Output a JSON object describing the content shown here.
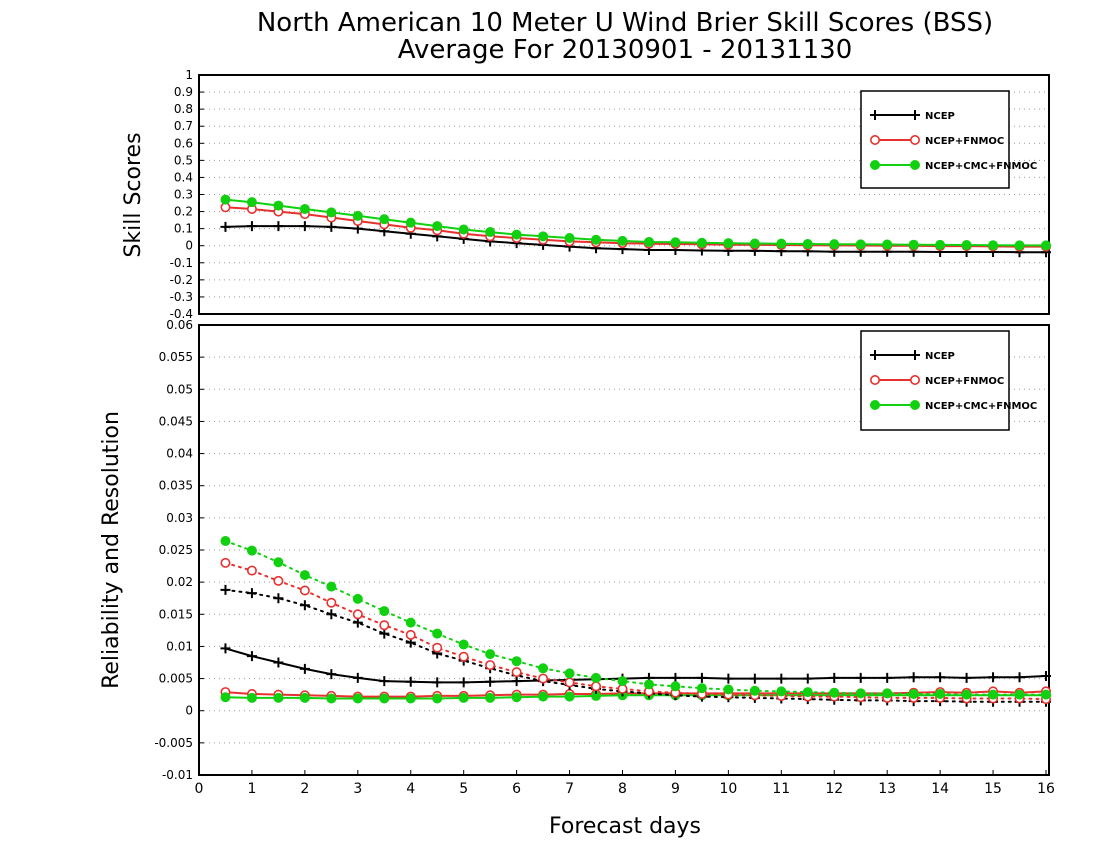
{
  "title_line1": "North American 10 Meter U Wind Brier Skill Scores (BSS)",
  "title_line2": "Average For 20130901 - 20131130",
  "colors": {
    "NCEP": "#000000",
    "NCEP+FNMOC": "#e8312f",
    "NCEP+CMC+FNMOC": "#10d010"
  },
  "chart_data": [
    {
      "type": "line",
      "ylabel": "Skill Scores",
      "ylim": [
        -0.4,
        1
      ],
      "yticks": [
        "1",
        "0.9",
        "0.8",
        "0.7",
        "0.6",
        "0.5",
        "0.4",
        "0.3",
        "0.2",
        "0.1",
        "0",
        "-0.1",
        "-0.2",
        "-0.3",
        "-0.4"
      ],
      "x": [
        0.5,
        1,
        1.5,
        2,
        2.5,
        3,
        3.5,
        4,
        4.5,
        5,
        5.5,
        6,
        6.5,
        7,
        7.5,
        8,
        8.5,
        9,
        9.5,
        10,
        10.5,
        11,
        11.5,
        12,
        12.5,
        13,
        13.5,
        14,
        14.5,
        15,
        15.5,
        16
      ],
      "series": [
        {
          "name": "NCEP",
          "marker": "plus",
          "style": "solid",
          "values": [
            0.11,
            0.115,
            0.115,
            0.115,
            0.11,
            0.1,
            0.085,
            0.07,
            0.055,
            0.04,
            0.025,
            0.015,
            0.005,
            -0.005,
            -0.015,
            -0.02,
            -0.025,
            -0.025,
            -0.028,
            -0.03,
            -0.03,
            -0.032,
            -0.033,
            -0.035,
            -0.035,
            -0.035,
            -0.035,
            -0.037,
            -0.037,
            -0.037,
            -0.038,
            -0.038
          ]
        },
        {
          "name": "NCEP+FNMOC",
          "marker": "open-circle",
          "style": "solid",
          "values": [
            0.225,
            0.215,
            0.2,
            0.185,
            0.165,
            0.145,
            0.125,
            0.105,
            0.09,
            0.07,
            0.055,
            0.045,
            0.035,
            0.025,
            0.02,
            0.015,
            0.012,
            0.01,
            0.008,
            0.006,
            0.005,
            0.004,
            0.003,
            0.002,
            0.001,
            0.0,
            0.0,
            -0.002,
            -0.002,
            -0.004,
            -0.005,
            -0.005
          ]
        },
        {
          "name": "NCEP+CMC+FNMOC",
          "marker": "filled-circle",
          "style": "solid",
          "values": [
            0.27,
            0.255,
            0.235,
            0.215,
            0.195,
            0.175,
            0.155,
            0.135,
            0.115,
            0.095,
            0.08,
            0.065,
            0.055,
            0.045,
            0.035,
            0.028,
            0.022,
            0.02,
            0.017,
            0.015,
            0.013,
            0.012,
            0.01,
            0.009,
            0.008,
            0.007,
            0.006,
            0.005,
            0.004,
            0.003,
            0.002,
            0.002
          ]
        }
      ],
      "legend": [
        "NCEP",
        "NCEP+FNMOC",
        "NCEP+CMC+FNMOC"
      ],
      "legend_placement": "top-right",
      "grid": true
    },
    {
      "type": "line",
      "ylabel": "Reliability and Resolution",
      "xlabel": "Forecast days",
      "ylim": [
        -0.01,
        0.06
      ],
      "yticks": [
        "0.06",
        "0.055",
        "0.05",
        "0.045",
        "0.04",
        "0.035",
        "0.03",
        "0.025",
        "0.02",
        "0.015",
        "0.01",
        "0.005",
        "0",
        "-0.005",
        "-0.01"
      ],
      "xlim": [
        0,
        16
      ],
      "xticks": [
        "0",
        "1",
        "2",
        "3",
        "4",
        "5",
        "6",
        "7",
        "8",
        "9",
        "10",
        "11",
        "12",
        "13",
        "14",
        "15",
        "16"
      ],
      "x": [
        0.5,
        1,
        1.5,
        2,
        2.5,
        3,
        3.5,
        4,
        4.5,
        5,
        5.5,
        6,
        6.5,
        7,
        7.5,
        8,
        8.5,
        9,
        9.5,
        10,
        10.5,
        11,
        11.5,
        12,
        12.5,
        13,
        13.5,
        14,
        14.5,
        15,
        15.5,
        16
      ],
      "series": [
        {
          "name": "NCEP",
          "marker": "plus",
          "style": "solid",
          "values": [
            0.0097,
            0.0085,
            0.0075,
            0.0065,
            0.0057,
            0.0051,
            0.0046,
            0.0045,
            0.0044,
            0.0044,
            0.0045,
            0.0046,
            0.0047,
            0.0048,
            0.0049,
            0.005,
            0.0051,
            0.0051,
            0.0051,
            0.005,
            0.005,
            0.005,
            0.005,
            0.0051,
            0.0051,
            0.0051,
            0.0052,
            0.0052,
            0.0051,
            0.0052,
            0.0052,
            0.0054
          ]
        },
        {
          "name": "NCEP+FNMOC",
          "marker": "open-circle",
          "style": "solid",
          "values": [
            0.0029,
            0.0026,
            0.0025,
            0.0024,
            0.0023,
            0.0022,
            0.0022,
            0.0022,
            0.0023,
            0.0023,
            0.0024,
            0.0025,
            0.0025,
            0.0026,
            0.0026,
            0.0027,
            0.0027,
            0.0027,
            0.0027,
            0.0027,
            0.0027,
            0.0027,
            0.0027,
            0.0027,
            0.0027,
            0.0027,
            0.0028,
            0.0029,
            0.0028,
            0.003,
            0.0028,
            0.003
          ]
        },
        {
          "name": "NCEP+CMC+FNMOC",
          "marker": "filled-circle",
          "style": "solid",
          "values": [
            0.0021,
            0.002,
            0.002,
            0.002,
            0.0019,
            0.0019,
            0.0019,
            0.0019,
            0.0019,
            0.002,
            0.002,
            0.0021,
            0.0022,
            0.0022,
            0.0023,
            0.0024,
            0.0024,
            0.0024,
            0.0024,
            0.0024,
            0.0024,
            0.0024,
            0.0024,
            0.0024,
            0.0024,
            0.0024,
            0.0024,
            0.0024,
            0.0024,
            0.0024,
            0.0024,
            0.0024
          ]
        },
        {
          "name": "NCEP",
          "marker": "plus",
          "style": "dotted",
          "values": [
            0.0188,
            0.0183,
            0.0175,
            0.0164,
            0.015,
            0.0137,
            0.012,
            0.0106,
            0.0089,
            0.0078,
            0.0066,
            0.0055,
            0.0046,
            0.004,
            0.0034,
            0.003,
            0.0027,
            0.0024,
            0.0022,
            0.0021,
            0.002,
            0.0019,
            0.0018,
            0.0017,
            0.0016,
            0.0016,
            0.0015,
            0.0015,
            0.0014,
            0.0014,
            0.0014,
            0.0014
          ]
        },
        {
          "name": "NCEP+FNMOC",
          "marker": "open-circle",
          "style": "dotted",
          "values": [
            0.023,
            0.0218,
            0.0202,
            0.0187,
            0.0168,
            0.015,
            0.0133,
            0.0118,
            0.0098,
            0.0084,
            0.0071,
            0.006,
            0.005,
            0.0044,
            0.0038,
            0.0034,
            0.003,
            0.0028,
            0.0026,
            0.0025,
            0.0024,
            0.0023,
            0.0022,
            0.0022,
            0.0021,
            0.002,
            0.002,
            0.002,
            0.0019,
            0.0019,
            0.0019,
            0.0018
          ]
        },
        {
          "name": "NCEP+CMC+FNMOC",
          "marker": "filled-circle",
          "style": "dotted",
          "values": [
            0.0264,
            0.0249,
            0.0231,
            0.0211,
            0.0193,
            0.0174,
            0.0155,
            0.0137,
            0.012,
            0.0103,
            0.0088,
            0.0077,
            0.0066,
            0.0058,
            0.0051,
            0.0046,
            0.0041,
            0.0038,
            0.0035,
            0.0033,
            0.0031,
            0.003,
            0.0029,
            0.0028,
            0.0027,
            0.0027,
            0.0026,
            0.0026,
            0.0025,
            0.0025,
            0.0025,
            0.0025
          ]
        }
      ],
      "legend": [
        "NCEP",
        "NCEP+FNMOC",
        "NCEP+CMC+FNMOC"
      ],
      "legend_placement": "top-right",
      "grid": true
    }
  ]
}
